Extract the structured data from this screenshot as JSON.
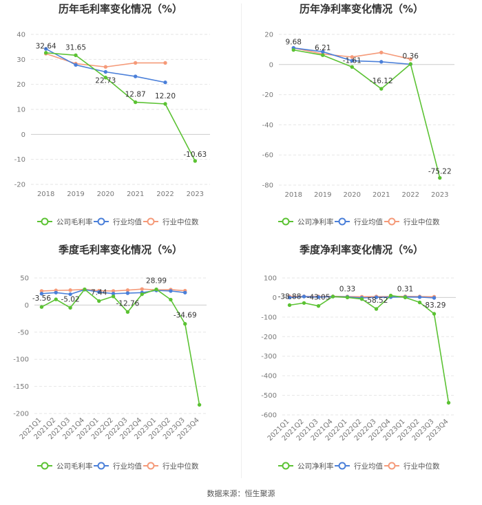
{
  "source": "数据来源：恒生聚源",
  "legend_common": {
    "industry_avg": "行业均值",
    "industry_median": "行业中位数"
  },
  "colors": {
    "company": "#5bc233",
    "avg": "#4a7fd9",
    "median": "#f59a79"
  },
  "chart_data": [
    {
      "type": "line",
      "title": "历年毛利率变化情况（%）",
      "company_label": "公司毛利率",
      "categories": [
        "2018",
        "2019",
        "2020",
        "2021",
        "2022",
        "2023"
      ],
      "ylim": [
        -20,
        40
      ],
      "yticks": [
        -20,
        -10,
        0,
        10,
        20,
        30,
        40
      ],
      "series": [
        {
          "name": "公司毛利率",
          "values": [
            32.64,
            31.65,
            22.73,
            12.87,
            12.2,
            -10.63
          ]
        },
        {
          "name": "行业均值",
          "values": [
            34.2,
            27.8,
            25.0,
            23.2,
            20.8,
            null
          ]
        },
        {
          "name": "行业中位数",
          "values": [
            32.3,
            28.3,
            27.0,
            28.6,
            28.6,
            null
          ]
        }
      ],
      "data_labels": [
        "32.64",
        "31.65",
        "22.73",
        "12.87",
        "12.20",
        "-10.63"
      ]
    },
    {
      "type": "line",
      "title": "历年净利率变化情况（%）",
      "company_label": "公司净利率",
      "categories": [
        "2018",
        "2019",
        "2020",
        "2021",
        "2022",
        "2023"
      ],
      "ylim": [
        -80,
        20
      ],
      "yticks": [
        -80,
        -60,
        -40,
        -20,
        0,
        20
      ],
      "series": [
        {
          "name": "公司净利率",
          "values": [
            9.68,
            6.21,
            -1.61,
            -16.12,
            0.36,
            -75.22
          ]
        },
        {
          "name": "行业均值",
          "values": [
            11.0,
            8.5,
            2.5,
            1.8,
            0.2,
            null
          ]
        },
        {
          "name": "行业中位数",
          "values": [
            11.0,
            7.0,
            5.0,
            8.0,
            3.6,
            null
          ]
        }
      ],
      "data_labels": [
        "9.68",
        "6.21",
        "-1.61",
        "-16.12",
        "0.36",
        "-75.22"
      ]
    },
    {
      "type": "line",
      "title": "季度毛利率变化情况（%）",
      "company_label": "公司毛利率",
      "categories": [
        "2021Q1",
        "2021Q2",
        "2021Q3",
        "2021Q4",
        "2022Q1",
        "2022Q2",
        "2022Q3",
        "2022Q4",
        "2023Q1",
        "2023Q2",
        "2023Q3",
        "2023Q4"
      ],
      "ylim": [
        -200,
        50
      ],
      "yticks": [
        -200,
        -150,
        -100,
        -50,
        0,
        50
      ],
      "series": [
        {
          "name": "公司毛利率",
          "values": [
            -3.56,
            10.5,
            -5.02,
            29.0,
            7.44,
            16.0,
            -12.76,
            20.0,
            28.99,
            10.0,
            -34.69,
            -184.0
          ]
        },
        {
          "name": "行业均值",
          "values": [
            21.0,
            23.0,
            20.0,
            28.5,
            24.0,
            21.0,
            22.0,
            23.0,
            27.0,
            26.0,
            23.0,
            null
          ]
        },
        {
          "name": "行业中位数",
          "values": [
            26.0,
            27.0,
            27.5,
            29.0,
            26.5,
            26.0,
            27.5,
            29.5,
            28.0,
            28.5,
            26.5,
            null
          ]
        }
      ],
      "labeled": [
        {
          "index": 0,
          "text": "-3.56"
        },
        {
          "index": 2,
          "text": "-5.02"
        },
        {
          "index": 4,
          "text": "7.44"
        },
        {
          "index": 6,
          "text": "-12.76"
        },
        {
          "index": 8,
          "text": "28.99"
        },
        {
          "index": 10,
          "text": "-34.69"
        }
      ]
    },
    {
      "type": "line",
      "title": "季度净利率变化情况（%）",
      "company_label": "公司净利率",
      "categories": [
        "2021Q1",
        "2021Q2",
        "2021Q3",
        "2021Q4",
        "2022Q1",
        "2022Q2",
        "2022Q3",
        "2022Q4",
        "2023Q1",
        "2023Q2",
        "2023Q3",
        "2023Q4"
      ],
      "ylim": [
        -600,
        100
      ],
      "yticks": [
        -600,
        -500,
        -400,
        -300,
        -200,
        -100,
        0,
        100
      ],
      "series": [
        {
          "name": "公司净利率",
          "values": [
            -38.88,
            -28.0,
            -43.05,
            5.0,
            0.33,
            -8.0,
            -58.52,
            10.0,
            0.31,
            -25.0,
            -83.29,
            -538.0
          ]
        },
        {
          "name": "行业均值",
          "values": [
            0.0,
            5.0,
            2.0,
            5.0,
            3.0,
            -2.0,
            1.0,
            2.0,
            3.0,
            2.0,
            -2.0,
            null
          ]
        },
        {
          "name": "行业中位数",
          "values": [
            5.0,
            6.0,
            5.0,
            6.0,
            5.0,
            4.0,
            5.0,
            5.0,
            6.0,
            5.0,
            4.0,
            null
          ]
        }
      ],
      "labeled": [
        {
          "index": 0,
          "text": "-38.88"
        },
        {
          "index": 2,
          "text": "-43.05"
        },
        {
          "index": 4,
          "text": "0.33"
        },
        {
          "index": 6,
          "text": "-58.52"
        },
        {
          "index": 8,
          "text": "0.31"
        },
        {
          "index": 10,
          "text": "-83.29"
        }
      ]
    }
  ]
}
